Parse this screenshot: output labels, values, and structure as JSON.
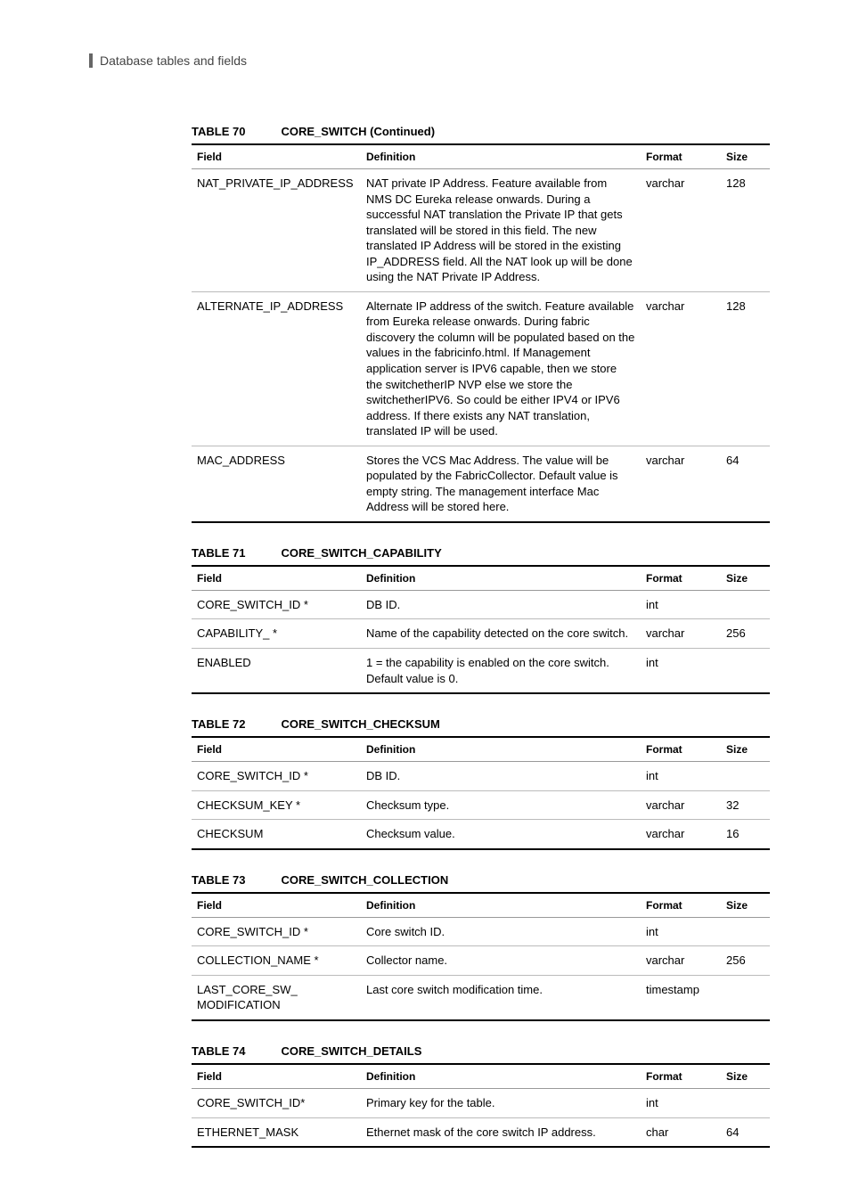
{
  "page_header": "Database tables and fields",
  "columns": {
    "field": "Field",
    "definition": "Definition",
    "format": "Format",
    "size": "Size"
  },
  "tables": [
    {
      "num": "TABLE 70",
      "name": "CORE_SWITCH (Continued)",
      "rows": [
        {
          "field": "NAT_PRIVATE_IP_ADDRESS",
          "definition": "NAT private IP Address. Feature available from NMS DC Eureka release onwards. During a successful NAT translation the Private IP that gets translated will be stored in this field. The new translated IP Address will be stored in the existing IP_ADDRESS field. All the NAT look up will be done using the NAT Private IP Address.",
          "format": "varchar",
          "size": "128"
        },
        {
          "field": "ALTERNATE_IP_ADDRESS",
          "definition": "Alternate IP address of the switch. Feature available from Eureka release onwards. During fabric discovery the column will be populated based on the values in the fabricinfo.html. If Management application server is IPV6 capable, then we store the switchetherIP NVP else we store the switchetherIPV6. So could be either IPV4 or IPV6 address. If there exists any NAT translation, translated IP will be used.",
          "format": "varchar",
          "size": "128"
        },
        {
          "field": "MAC_ADDRESS",
          "definition": "Stores the VCS Mac Address. The value will be populated by the FabricCollector. Default value is empty string. The management interface Mac Address will be stored here.",
          "format": "varchar",
          "size": "64"
        }
      ]
    },
    {
      "num": "TABLE 71",
      "name": "CORE_SWITCH_CAPABILITY",
      "rows": [
        {
          "field": "CORE_SWITCH_ID *",
          "definition": "DB ID.",
          "format": "int",
          "size": ""
        },
        {
          "field": "CAPABILITY_ *",
          "definition": "Name of the capability detected on the core switch.",
          "format": "varchar",
          "size": "256"
        },
        {
          "field": "ENABLED",
          "definition": "1 = the capability is enabled on the core switch. Default value is 0.",
          "format": "int",
          "size": ""
        }
      ]
    },
    {
      "num": "TABLE 72",
      "name": "CORE_SWITCH_CHECKSUM",
      "rows": [
        {
          "field": "CORE_SWITCH_ID *",
          "definition": "DB ID.",
          "format": "int",
          "size": ""
        },
        {
          "field": "CHECKSUM_KEY *",
          "definition": "Checksum type.",
          "format": "varchar",
          "size": "32"
        },
        {
          "field": "CHECKSUM",
          "definition": "Checksum value.",
          "format": "varchar",
          "size": "16"
        }
      ]
    },
    {
      "num": "TABLE 73",
      "name": "CORE_SWITCH_COLLECTION",
      "rows": [
        {
          "field": "CORE_SWITCH_ID *",
          "definition": "Core switch ID.",
          "format": "int",
          "size": ""
        },
        {
          "field": "COLLECTION_NAME *",
          "definition": "Collector name.",
          "format": "varchar",
          "size": "256"
        },
        {
          "field": "LAST_CORE_SW_ MODIFICATION",
          "definition": "Last core switch modification time.",
          "format": "timestamp",
          "size": ""
        }
      ]
    },
    {
      "num": "TABLE 74",
      "name": "CORE_SWITCH_DETAILS",
      "rows": [
        {
          "field": "CORE_SWITCH_ID*",
          "definition": "Primary key for the table.",
          "format": "int",
          "size": ""
        },
        {
          "field": "ETHERNET_MASK",
          "definition": "Ethernet mask of the core switch IP address.",
          "format": "char",
          "size": "64"
        }
      ]
    }
  ]
}
